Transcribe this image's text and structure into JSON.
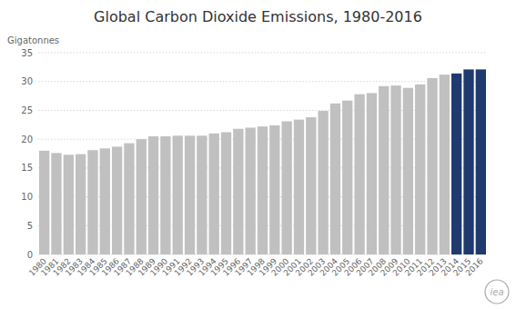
{
  "chart_data": {
    "type": "bar",
    "title": "Global Carbon Dioxide Emissions, 1980-2016",
    "ylabel": "Gigatonnes",
    "categories": [
      "1980",
      "1981",
      "1982",
      "1983",
      "1984",
      "1985",
      "1986",
      "1987",
      "1988",
      "1989",
      "1990",
      "1991",
      "1992",
      "1993",
      "1994",
      "1995",
      "1996",
      "1997",
      "1998",
      "1999",
      "2000",
      "2001",
      "2002",
      "2003",
      "2004",
      "2005",
      "2006",
      "2007",
      "2008",
      "2009",
      "2010",
      "2011",
      "2012",
      "2013",
      "2014",
      "2015",
      "2016"
    ],
    "values": [
      18.0,
      17.6,
      17.3,
      17.4,
      18.1,
      18.4,
      18.7,
      19.3,
      20.0,
      20.5,
      20.5,
      20.6,
      20.6,
      20.6,
      21.0,
      21.2,
      21.8,
      22.0,
      22.2,
      22.4,
      23.1,
      23.4,
      23.8,
      24.9,
      26.2,
      26.7,
      27.8,
      28.0,
      29.2,
      29.3,
      28.9,
      29.5,
      30.6,
      31.2,
      31.4,
      32.1,
      32.1
    ],
    "colors": [
      "#c0c0c0",
      "#c0c0c0",
      "#c0c0c0",
      "#c0c0c0",
      "#c0c0c0",
      "#c0c0c0",
      "#c0c0c0",
      "#c0c0c0",
      "#c0c0c0",
      "#c0c0c0",
      "#c0c0c0",
      "#c0c0c0",
      "#c0c0c0",
      "#c0c0c0",
      "#c0c0c0",
      "#c0c0c0",
      "#c0c0c0",
      "#c0c0c0",
      "#c0c0c0",
      "#c0c0c0",
      "#c0c0c0",
      "#c0c0c0",
      "#c0c0c0",
      "#c0c0c0",
      "#c0c0c0",
      "#c0c0c0",
      "#c0c0c0",
      "#c0c0c0",
      "#c0c0c0",
      "#c0c0c0",
      "#c0c0c0",
      "#c0c0c0",
      "#c0c0c0",
      "#c0c0c0",
      "#1e3a6e",
      "#1e3a6e",
      "#1e3a6e"
    ],
    "ylim": [
      0,
      35
    ],
    "yticks": [
      0,
      5,
      10,
      15,
      20,
      25,
      30,
      35
    ],
    "grid": true,
    "annotations": [
      "iea"
    ]
  }
}
